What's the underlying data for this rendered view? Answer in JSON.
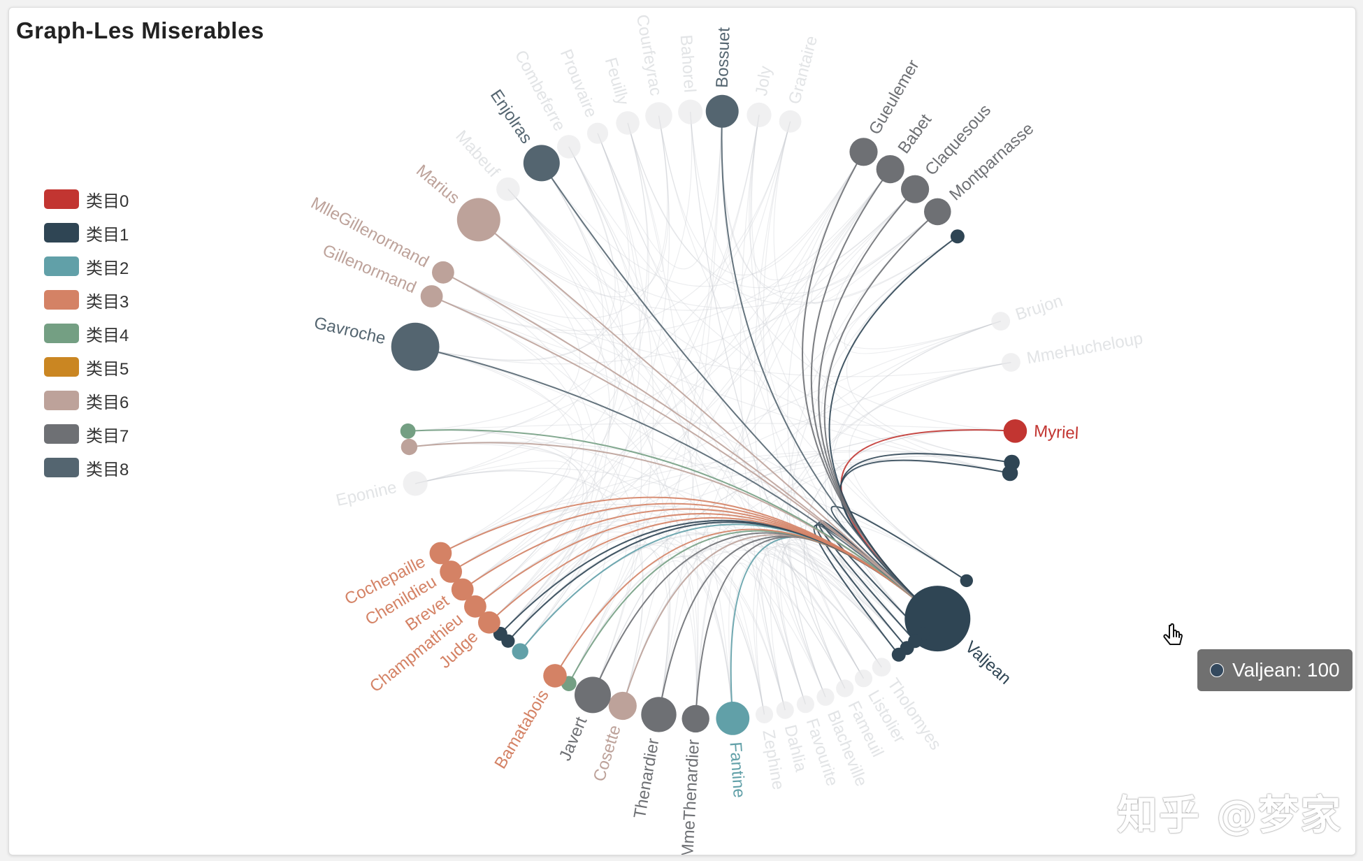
{
  "title": "Graph-Les Miserables",
  "watermark": "知乎 @梦家",
  "tooltip": {
    "text": "Valjean: 100",
    "color": "#34495e"
  },
  "legend": [
    {
      "name": "类目0",
      "color": "#c23531"
    },
    {
      "name": "类目1",
      "color": "#2f4554"
    },
    {
      "name": "类目2",
      "color": "#61a0a8"
    },
    {
      "name": "类目3",
      "color": "#d48265"
    },
    {
      "name": "类目4",
      "color": "#749f83"
    },
    {
      "name": "类目5",
      "color": "#ca8622"
    },
    {
      "name": "类目6",
      "color": "#bda29a"
    },
    {
      "name": "类目7",
      "color": "#6e7074"
    },
    {
      "name": "类目8",
      "color": "#546570"
    }
  ],
  "chart_data": {
    "type": "graph",
    "layout": "circular",
    "focus_node": "Valjean",
    "nodes": [
      {
        "name": "Myriel",
        "category": 0,
        "value": 28,
        "angle": 3,
        "label": "Myriel",
        "faded": false
      },
      {
        "name": "",
        "category": 1,
        "value": 15,
        "angle": 9,
        "label": "",
        "faded": false
      },
      {
        "name": "",
        "category": 1,
        "value": 15,
        "angle": 11,
        "label": "",
        "faded": false
      },
      {
        "name": "",
        "category": 1,
        "value": 10,
        "angle": 33,
        "label": "",
        "faded": false
      },
      {
        "name": "Valjean",
        "category": 1,
        "value": 100,
        "angle": 42,
        "label": "Valjean",
        "faded": false
      },
      {
        "name": "",
        "category": 1,
        "value": 12,
        "angle": 46,
        "label": "",
        "faded": false
      },
      {
        "name": "",
        "category": 1,
        "value": 12,
        "angle": 48,
        "label": "",
        "faded": false
      },
      {
        "name": "",
        "category": 1,
        "value": 12,
        "angle": 50,
        "label": "",
        "faded": false
      },
      {
        "name": "",
        "category": 1,
        "value": 12,
        "angle": 52,
        "label": "",
        "faded": false
      },
      {
        "name": "Tholomyes",
        "category": 2,
        "value": 20,
        "angle": 56,
        "label": "Tholomyes",
        "faded": true
      },
      {
        "name": "Listolier",
        "category": 2,
        "value": 18,
        "angle": 60,
        "label": "Listolier",
        "faded": true
      },
      {
        "name": "Fameuil",
        "category": 2,
        "value": 18,
        "angle": 64,
        "label": "Fameuil",
        "faded": true
      },
      {
        "name": "Blacheville",
        "category": 2,
        "value": 18,
        "angle": 68,
        "label": "Blacheville",
        "faded": true
      },
      {
        "name": "Favourite",
        "category": 2,
        "value": 18,
        "angle": 72,
        "label": "Favourite",
        "faded": true
      },
      {
        "name": "Dahlia",
        "category": 2,
        "value": 18,
        "angle": 76,
        "label": "Dahlia",
        "faded": true
      },
      {
        "name": "Zephine",
        "category": 2,
        "value": 18,
        "angle": 80,
        "label": "Zephine",
        "faded": true
      },
      {
        "name": "Fantine",
        "category": 2,
        "value": 45,
        "angle": 86,
        "label": "Fantine",
        "faded": false
      },
      {
        "name": "Thenardier",
        "category": 7,
        "value": 35,
        "angle": 93,
        "label": "MmeThenardier",
        "faded": false
      },
      {
        "name": "Thenardier",
        "category": 7,
        "value": 48,
        "angle": 100,
        "label": "Thenardier",
        "faded": false
      },
      {
        "name": "Cosette",
        "category": 6,
        "value": 36,
        "angle": 107,
        "label": "Cosette",
        "faded": false
      },
      {
        "name": "Javert",
        "category": 7,
        "value": 50,
        "angle": 113,
        "label": "Javert",
        "faded": false
      },
      {
        "name": "",
        "category": 4,
        "value": 14,
        "angle": 118,
        "label": "",
        "faded": false
      },
      {
        "name": "Bamatabois",
        "category": 3,
        "value": 28,
        "angle": 121,
        "label": "Bamatabois",
        "faded": false
      },
      {
        "name": "",
        "category": 2,
        "value": 16,
        "angle": 129,
        "label": "",
        "faded": false
      },
      {
        "name": "",
        "category": 1,
        "value": 11,
        "angle": 132,
        "label": "",
        "faded": false
      },
      {
        "name": "",
        "category": 1,
        "value": 12,
        "angle": 134,
        "label": "",
        "faded": false
      },
      {
        "name": "Judge",
        "category": 3,
        "value": 26,
        "angle": 137,
        "label": "Judge",
        "faded": false
      },
      {
        "name": "Champmathieu",
        "category": 3,
        "value": 26,
        "angle": 141,
        "label": "Champmathieu",
        "faded": false
      },
      {
        "name": "Brevet",
        "category": 3,
        "value": 26,
        "angle": 145,
        "label": "Brevet",
        "faded": false
      },
      {
        "name": "Chenildieu",
        "category": 3,
        "value": 26,
        "angle": 149,
        "label": "Chenildieu",
        "faded": false
      },
      {
        "name": "Cochepaille",
        "category": 3,
        "value": 26,
        "angle": 153,
        "label": "Cochepaille",
        "faded": false
      },
      {
        "name": "Eponine",
        "category": 6,
        "value": 30,
        "angle": 167,
        "label": "Eponine",
        "faded": true
      },
      {
        "name": "",
        "category": 6,
        "value": 16,
        "angle": 174,
        "label": "",
        "faded": false
      },
      {
        "name": "",
        "category": 4,
        "value": 14,
        "angle": 177,
        "label": "",
        "faded": false
      },
      {
        "name": "Gavroche",
        "category": 8,
        "value": 70,
        "angle": 193,
        "label": "Gavroche",
        "faded": false
      },
      {
        "name": "Gillenormand",
        "category": 6,
        "value": 26,
        "angle": 203,
        "label": "Gillenormand",
        "faded": false
      },
      {
        "name": "MlleGillenormand",
        "category": 6,
        "value": 26,
        "angle": 208,
        "label": "MlleGillenormand",
        "faded": false
      },
      {
        "name": "Marius",
        "category": 6,
        "value": 62,
        "angle": 220,
        "label": "Marius",
        "faded": false
      },
      {
        "name": "Mabeuf",
        "category": 8,
        "value": 28,
        "angle": 228,
        "label": "Mabeuf",
        "faded": true
      },
      {
        "name": "Enjolras",
        "category": 8,
        "value": 50,
        "angle": 236,
        "label": "Enjolras",
        "faded": false
      },
      {
        "name": "Combeferre",
        "category": 8,
        "value": 28,
        "angle": 242,
        "label": "Combeferre",
        "faded": true
      },
      {
        "name": "Prouvaire",
        "category": 8,
        "value": 24,
        "angle": 248,
        "label": "Prouvaire",
        "faded": true
      },
      {
        "name": "Feuilly",
        "category": 8,
        "value": 28,
        "angle": 254,
        "label": "Feuilly",
        "faded": true
      },
      {
        "name": "Courfeyrac",
        "category": 8,
        "value": 34,
        "angle": 260,
        "label": "Courfeyrac",
        "faded": true
      },
      {
        "name": "Bahorel",
        "category": 8,
        "value": 30,
        "angle": 266,
        "label": "Bahorel",
        "faded": true
      },
      {
        "name": "Bossuet",
        "category": 8,
        "value": 44,
        "angle": 272,
        "label": "Bossuet",
        "faded": false
      },
      {
        "name": "Joly",
        "category": 8,
        "value": 30,
        "angle": 279,
        "label": "Joly",
        "faded": true
      },
      {
        "name": "Grantaire",
        "category": 8,
        "value": 26,
        "angle": 285,
        "label": "Grantaire",
        "faded": true
      },
      {
        "name": "Gueulemer",
        "category": 7,
        "value": 36,
        "angle": 300,
        "label": "Gueulemer",
        "faded": false
      },
      {
        "name": "Babet",
        "category": 7,
        "value": 36,
        "angle": 306,
        "label": "Babet",
        "faded": false
      },
      {
        "name": "Claquesous",
        "category": 7,
        "value": 36,
        "angle": 312,
        "label": "Claquesous",
        "faded": false
      },
      {
        "name": "Montparnasse",
        "category": 7,
        "value": 34,
        "angle": 318,
        "label": "Montparnasse",
        "faded": false
      },
      {
        "name": "",
        "category": 1,
        "value": 12,
        "angle": 324,
        "label": "",
        "faded": false
      },
      {
        "name": "Brujon",
        "category": 7,
        "value": 20,
        "angle": 342,
        "label": "Brujon",
        "faded": true
      },
      {
        "name": "MmeHucheloup",
        "category": 8,
        "value": 20,
        "angle": 350,
        "label": "MmeHucheloup",
        "faded": true
      }
    ]
  }
}
